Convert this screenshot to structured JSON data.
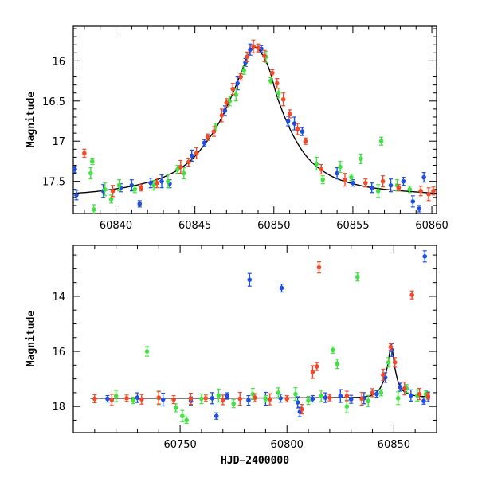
{
  "chart_data": [
    {
      "type": "scatter",
      "title": "",
      "xlabel": "",
      "ylabel": "Magnitude",
      "xlim": [
        60837.3,
        60860.3
      ],
      "ylim": [
        17.9,
        15.57
      ],
      "y_inverted": true,
      "x_ticks": [
        60840,
        60845,
        60850,
        60855,
        60860
      ],
      "y_ticks": [
        16,
        16.5,
        17,
        17.5
      ],
      "x_tick_labels": [
        "60840",
        "60845",
        "60850",
        "60855",
        "60860"
      ],
      "y_tick_labels": [
        "16",
        "16.5",
        "17",
        "17.5"
      ],
      "grid": false,
      "model_curve": {
        "color": "#000000",
        "x": [
          60837.3,
          60839.0,
          60841.0,
          60843.0,
          60844.5,
          60845.5,
          60846.5,
          60847.3,
          60847.9,
          60848.4,
          60848.8,
          60849.2,
          60849.7,
          60850.3,
          60851.2,
          60852.2,
          60853.5,
          60855.0,
          60857.0,
          60860.3
        ],
        "y": [
          17.65,
          17.62,
          17.56,
          17.45,
          17.28,
          17.07,
          16.78,
          16.45,
          16.16,
          15.92,
          15.83,
          15.9,
          16.1,
          16.5,
          16.92,
          17.22,
          17.42,
          17.53,
          17.6,
          17.65
        ]
      },
      "series": [
        {
          "color": "#1f4fe0",
          "x": [
            60837.4,
            60837.5,
            60839.2,
            60840.3,
            60841.0,
            60841.5,
            60842.2,
            60842.9,
            60843.4,
            60844.8,
            60845.6,
            60846.9,
            60847.7,
            60848.2,
            60848.5,
            60849.2,
            60850.9,
            60851.3,
            60851.8,
            60854.0,
            60855.0,
            60856.2,
            60857.4,
            60858.2,
            60858.8,
            60859.2,
            60859.5
          ],
          "y": [
            17.35,
            17.67,
            17.62,
            17.58,
            17.55,
            17.78,
            17.52,
            17.5,
            17.53,
            17.18,
            17.02,
            16.62,
            16.28,
            16.02,
            15.86,
            15.85,
            16.75,
            16.78,
            16.88,
            17.4,
            17.52,
            17.58,
            17.55,
            17.5,
            17.75,
            17.84,
            17.45
          ]
        },
        {
          "color": "#44e044",
          "x": [
            60838.4,
            60838.5,
            60838.6,
            60839.3,
            60839.7,
            60840.2,
            60841.2,
            60842.4,
            60843.3,
            60843.9,
            60844.3,
            60846.3,
            60847.2,
            60847.6,
            60848.1,
            60849.5,
            60849.8,
            60850.3,
            60852.7,
            60853.1,
            60854.2,
            60854.9,
            60855.5,
            60856.6,
            60856.8,
            60857.8,
            60858.6
          ],
          "y": [
            17.4,
            17.25,
            17.85,
            17.6,
            17.72,
            17.55,
            17.6,
            17.55,
            17.5,
            17.35,
            17.4,
            16.82,
            16.5,
            16.42,
            16.12,
            15.95,
            16.25,
            16.4,
            17.28,
            17.48,
            17.32,
            17.45,
            17.22,
            17.62,
            17.0,
            17.55,
            17.6
          ]
        },
        {
          "color": "#f04a2a",
          "x": [
            60838.0,
            60839.8,
            60841.6,
            60842.6,
            60844.1,
            60844.6,
            60845.1,
            60845.8,
            60846.2,
            60846.7,
            60847.0,
            60847.4,
            60847.9,
            60848.3,
            60848.7,
            60849.0,
            60849.4,
            60849.9,
            60850.2,
            60850.6,
            60851.0,
            60851.5,
            60852.0,
            60853.0,
            60854.5,
            60855.8,
            60856.9,
            60857.9,
            60859.3,
            60859.8,
            60860.1
          ],
          "y": [
            17.15,
            17.62,
            17.58,
            17.52,
            17.32,
            17.26,
            17.15,
            16.95,
            16.88,
            16.68,
            16.52,
            16.35,
            16.2,
            15.95,
            15.82,
            15.84,
            15.94,
            16.15,
            16.28,
            16.48,
            16.66,
            16.85,
            17.0,
            17.35,
            17.48,
            17.52,
            17.5,
            17.58,
            17.62,
            17.66,
            17.62
          ]
        }
      ]
    },
    {
      "type": "scatter",
      "title": "",
      "xlabel": "HJD−2400000",
      "ylabel": "Magnitude",
      "xlim": [
        60700,
        60870
      ],
      "ylim": [
        18.95,
        12.15
      ],
      "y_inverted": true,
      "x_ticks": [
        60750,
        60800,
        60850
      ],
      "y_ticks": [
        14,
        16,
        18
      ],
      "x_tick_labels": [
        "60750",
        "60800",
        "60850"
      ],
      "y_tick_labels": [
        "14",
        "16",
        "18"
      ],
      "grid": false,
      "model_curve": {
        "color": "#000000",
        "x": [
          60708,
          60760,
          60800,
          60825,
          60835,
          60840,
          60843,
          60845,
          60847,
          60848.8,
          60850.5,
          60852,
          60854,
          60857,
          60861,
          60866
        ],
        "y": [
          17.7,
          17.7,
          17.69,
          17.68,
          17.66,
          17.58,
          17.4,
          17.1,
          16.55,
          15.83,
          16.6,
          17.1,
          17.4,
          17.55,
          17.62,
          17.65
        ]
      },
      "series": [
        {
          "color": "#1f4fe0",
          "x": [
            60716,
            60730,
            60742,
            60755,
            60765,
            60772,
            60782,
            60790,
            60797,
            60805,
            60812,
            60818,
            60825,
            60830,
            60836,
            60842,
            60846,
            60849,
            60853,
            60858,
            60864,
            60866,
            60782.5,
            60797.5,
            60864.5,
            60767,
            60806
          ],
          "y": [
            17.72,
            17.68,
            17.75,
            17.8,
            17.7,
            17.62,
            17.78,
            17.72,
            17.7,
            17.85,
            17.72,
            17.68,
            17.62,
            17.74,
            17.7,
            17.55,
            16.95,
            15.95,
            17.3,
            17.6,
            17.8,
            17.65,
            13.4,
            13.7,
            12.55,
            18.35,
            18.2
          ]
        },
        {
          "color": "#44e044",
          "x": [
            60720,
            60728,
            60734.5,
            60740,
            60748,
            60751,
            60753,
            60760,
            60768,
            60775,
            60784,
            60790,
            60796,
            60804,
            60810,
            60816,
            60821.5,
            60823.5,
            60828,
            60833,
            60838,
            60844,
            60847.5,
            60852,
            60856,
            60861,
            60865
          ],
          "y": [
            17.62,
            17.78,
            16.0,
            17.7,
            18.05,
            18.35,
            18.5,
            17.72,
            17.6,
            17.9,
            17.55,
            17.72,
            17.5,
            17.55,
            17.78,
            17.62,
            15.95,
            16.45,
            18.0,
            13.3,
            17.8,
            17.5,
            16.4,
            17.7,
            17.35,
            17.6,
            17.55
          ]
        },
        {
          "color": "#f04a2a",
          "x": [
            60710,
            60718,
            60725,
            60732,
            60740,
            60747,
            60755,
            60762,
            60770,
            60778,
            60785,
            60792,
            60800,
            60807,
            60812,
            60814,
            60815,
            60820,
            60828,
            60835,
            60840,
            60845,
            60848.5,
            60850.5,
            60855,
            60858.5,
            60862,
            60866
          ],
          "y": [
            17.72,
            17.76,
            17.7,
            17.74,
            17.68,
            17.75,
            17.72,
            17.7,
            17.76,
            17.72,
            17.68,
            17.74,
            17.72,
            18.1,
            16.75,
            16.55,
            12.95,
            17.68,
            17.62,
            17.72,
            17.5,
            16.85,
            15.84,
            16.4,
            17.35,
            13.95,
            17.55,
            17.62
          ]
        }
      ]
    }
  ]
}
